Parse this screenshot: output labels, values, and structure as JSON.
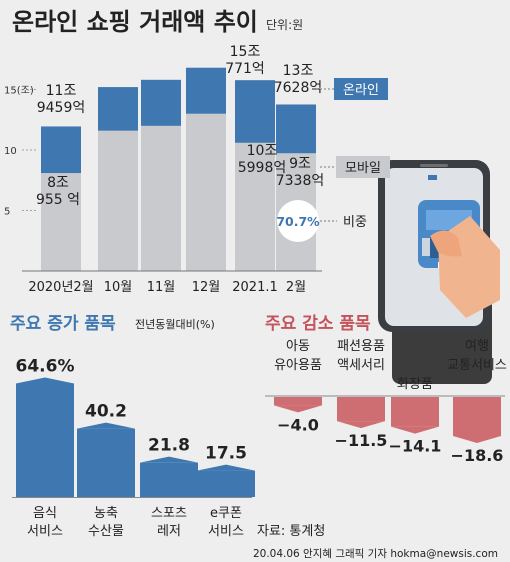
{
  "title": "온라인 쇼핑 거래액 추이",
  "unit": "단위:원",
  "colors": {
    "online": "#3f77b0",
    "mobile": "#c8cacd",
    "increase_text": "#3f77b0",
    "decrease_text": "#c4535c",
    "decrease_bar": "#cf6e72"
  },
  "chart_data": [
    {
      "type": "bar",
      "title": "",
      "categories": [
        "2020년2월",
        "10월",
        "11월",
        "12월",
        "2021.1",
        "2월"
      ],
      "series": [
        {
          "name": "온라인",
          "values": [
            11.9459,
            15.2,
            15.8,
            16.8,
            15.771,
            13.7628
          ]
        },
        {
          "name": "모바일",
          "values": [
            8.0955,
            11.6,
            12.0,
            13.0,
            10.5998,
            9.7338
          ]
        }
      ],
      "y_ticks": [
        "5",
        "10",
        "15(조)"
      ],
      "ylim": [
        0,
        17
      ],
      "data_labels": [
        {
          "category": "2020년2월",
          "series": "온라인",
          "text": "11조 9459억"
        },
        {
          "category": "2020년2월",
          "series": "모바일",
          "text": "8조 955 억"
        },
        {
          "category": "2021.1",
          "series": "온라인",
          "text": "15조 771억"
        },
        {
          "category": "2021.1",
          "series": "모바일",
          "text": "10조 5998억"
        },
        {
          "category": "2월",
          "series": "온라인",
          "text": "13조 7628억"
        },
        {
          "category": "2월",
          "series": "모바일",
          "text": "9조 7338억"
        }
      ],
      "legend": [
        "온라인",
        "모바일",
        "비중"
      ],
      "share_label": "70.7%"
    },
    {
      "type": "bar",
      "title": "주요 증가 품목",
      "subtitle": "전년동월대비(%)",
      "categories": [
        "음식 서비스",
        "농축 수산물",
        "스포츠 레저",
        "e쿠폰 서비스"
      ],
      "category_lines": [
        [
          "음식",
          "서비스"
        ],
        [
          "농축",
          "수산물"
        ],
        [
          "스포츠",
          "레저"
        ],
        [
          "e쿠폰",
          "서비스"
        ]
      ],
      "values": [
        64.6,
        40.2,
        21.8,
        17.5
      ],
      "value_labels": [
        "64.6%",
        "40.2",
        "21.8",
        "17.5"
      ]
    },
    {
      "type": "bar",
      "title": "주요 감소 품목",
      "categories": [
        "아동 유아용품",
        "패션용품 액세서리",
        "화장품",
        "여행 교통서비스"
      ],
      "category_lines": [
        [
          "아동",
          "유아용품"
        ],
        [
          "패션용품",
          "액세서리"
        ],
        [
          "화장품"
        ],
        [
          "여행",
          "교통서비스"
        ]
      ],
      "values": [
        -4.0,
        -11.5,
        -14.1,
        -18.6
      ],
      "value_labels": [
        "−4.0",
        "−11.5",
        "−14.1",
        "−18.6"
      ]
    }
  ],
  "footer": {
    "source": "자료: 통계청",
    "credit": "20.04.06 안지혜 그래픽 기자 hokma@newsis.com"
  }
}
